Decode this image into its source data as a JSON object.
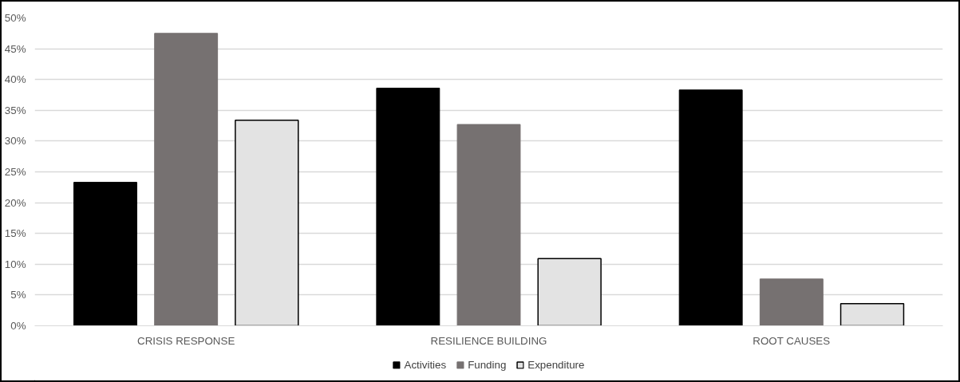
{
  "chart_data": {
    "type": "bar",
    "categories": [
      "CRISIS RESPONSE",
      "RESILIENCE BUILDING",
      "ROOT CAUSES"
    ],
    "series": [
      {
        "name": "Activities",
        "color": "#000000",
        "values": [
          23.3,
          38.6,
          38.3
        ]
      },
      {
        "name": "Funding",
        "color": "#767171",
        "values": [
          47.5,
          32.7,
          7.6
        ]
      },
      {
        "name": "Expenditure",
        "color": "#e3e3e3",
        "values": [
          33.4,
          10.9,
          3.6
        ]
      }
    ],
    "ylim": [
      0,
      50
    ],
    "yticks": [
      {
        "value": 0,
        "label": "0%"
      },
      {
        "value": 5,
        "label": "5%"
      },
      {
        "value": 10,
        "label": "10%"
      },
      {
        "value": 15,
        "label": "15%"
      },
      {
        "value": 20,
        "label": "20%"
      },
      {
        "value": 25,
        "label": "25%"
      },
      {
        "value": 30,
        "label": "30%"
      },
      {
        "value": 35,
        "label": "35%"
      },
      {
        "value": 40,
        "label": "40%"
      },
      {
        "value": 45,
        "label": "45%"
      },
      {
        "value": 50,
        "label": "50%"
      }
    ],
    "grid": "y",
    "legend": "bottom"
  }
}
